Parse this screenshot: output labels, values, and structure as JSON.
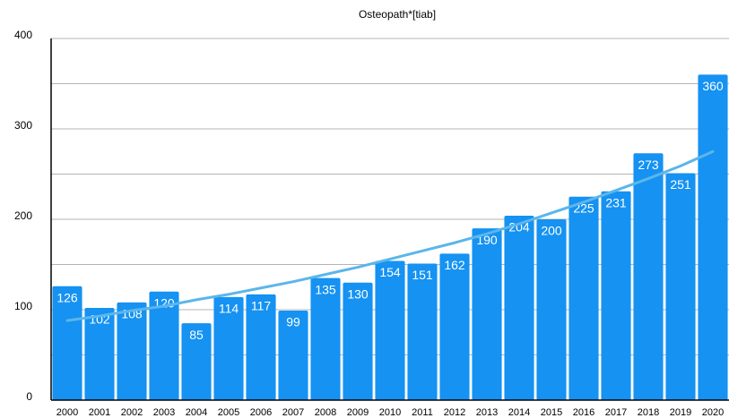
{
  "chart_data": {
    "type": "bar",
    "title": "Osteopath*[tiab]",
    "categories": [
      "2000",
      "2001",
      "2002",
      "2003",
      "2004",
      "2005",
      "2006",
      "2007",
      "2008",
      "2009",
      "2010",
      "2011",
      "2012",
      "2013",
      "2014",
      "2015",
      "2016",
      "2017",
      "2018",
      "2019",
      "2020"
    ],
    "values": [
      126,
      102,
      108,
      120,
      85,
      114,
      117,
      99,
      135,
      130,
      154,
      151,
      162,
      190,
      204,
      200,
      225,
      231,
      273,
      251,
      360
    ],
    "color": "#1592f2",
    "trendline": {
      "color": "#5bb6ea",
      "values": [
        88,
        93,
        99,
        104,
        111,
        117,
        124,
        131,
        139,
        147,
        156,
        165,
        174,
        184,
        195,
        207,
        219,
        232,
        245,
        259,
        275
      ]
    },
    "ylim": [
      0,
      400
    ],
    "yticks": [
      0,
      100,
      200,
      300,
      400
    ],
    "minor_yticks": [
      50,
      150,
      250,
      350
    ],
    "grid": true
  }
}
